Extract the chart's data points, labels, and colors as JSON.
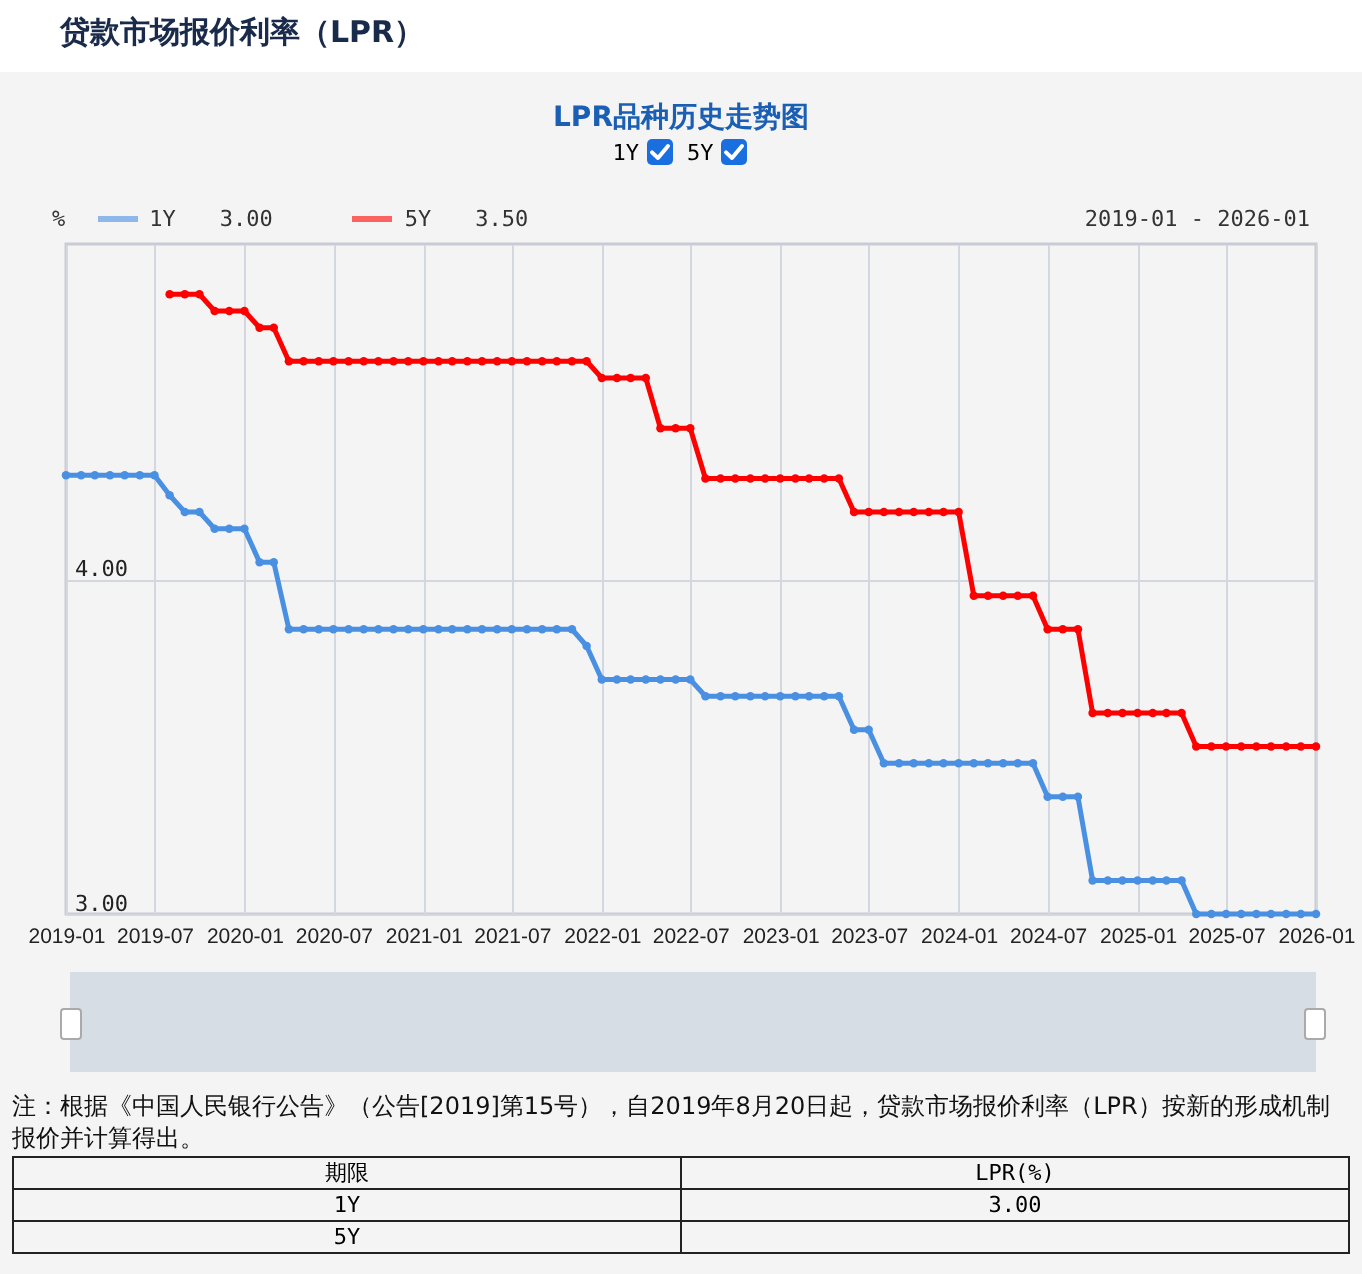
{
  "chart_data": {
    "type": "line",
    "title": "贷款市场报价利率（LPR）",
    "subtitle": "LPR品种历史走势图",
    "ylabel": "%",
    "xlim": [
      "2019-01",
      "2026-01"
    ],
    "xticks": [
      {
        "value": "2019-01",
        "label": "2019-01"
      },
      {
        "value": "2019-07",
        "label": "2019-07"
      },
      {
        "value": "2020-01",
        "label": "2020-01"
      },
      {
        "value": "2020-07",
        "label": "2020-07"
      },
      {
        "value": "2021-01",
        "label": "2021-01"
      },
      {
        "value": "2021-07",
        "label": "2021-07"
      },
      {
        "value": "2022-01",
        "label": "2022-01"
      },
      {
        "value": "2022-07",
        "label": "2022-07"
      },
      {
        "value": "2023-01",
        "label": "2023-01"
      },
      {
        "value": "2023-07",
        "label": "2023-07"
      },
      {
        "value": "2024-01",
        "label": "2024-01"
      },
      {
        "value": "2024-07",
        "label": "2024-07"
      },
      {
        "value": "2025-01",
        "label": "2025-01"
      },
      {
        "value": "2025-07",
        "label": "2025-07"
      },
      {
        "value": "2026-01",
        "label": "2026-01"
      }
    ],
    "ylim": [
      3,
      5
    ],
    "yticks": [
      {
        "value": 3,
        "label": "3.00"
      },
      {
        "value": 4,
        "label": "4.00"
      }
    ],
    "grid": true,
    "legend": "top left",
    "marker": "circle",
    "series": [
      {
        "name": "1Y",
        "color": "#4a90e2",
        "x": [
          "2019-01",
          "2019-02",
          "2019-03",
          "2019-04",
          "2019-05",
          "2019-06",
          "2019-07",
          "2019-08",
          "2019-09",
          "2019-10",
          "2019-11",
          "2019-12",
          "2020-01",
          "2020-02",
          "2020-03",
          "2020-04",
          "2020-05",
          "2020-06",
          "2020-07",
          "2020-08",
          "2020-09",
          "2020-10",
          "2020-11",
          "2020-12",
          "2021-01",
          "2021-02",
          "2021-03",
          "2021-04",
          "2021-05",
          "2021-06",
          "2021-07",
          "2021-08",
          "2021-09",
          "2021-10",
          "2021-11",
          "2021-12",
          "2022-01",
          "2022-02",
          "2022-03",
          "2022-04",
          "2022-05",
          "2022-06",
          "2022-07",
          "2022-08",
          "2022-09",
          "2022-10",
          "2022-11",
          "2022-12",
          "2023-01",
          "2023-02",
          "2023-03",
          "2023-04",
          "2023-05",
          "2023-06",
          "2023-07",
          "2023-08",
          "2023-09",
          "2023-10",
          "2023-11",
          "2023-12",
          "2024-01",
          "2024-02",
          "2024-03",
          "2024-04",
          "2024-05",
          "2024-06",
          "2024-07",
          "2024-08",
          "2024-09",
          "2024-10",
          "2024-11",
          "2024-12",
          "2025-01",
          "2025-02",
          "2025-03",
          "2025-04",
          "2025-05",
          "2025-06",
          "2025-07",
          "2025-08",
          "2025-09",
          "2025-10",
          "2025-11",
          "2025-12",
          "2026-01"
        ],
        "values": [
          4.31,
          4.31,
          4.31,
          4.31,
          4.31,
          4.31,
          4.31,
          4.25,
          4.2,
          4.2,
          4.15,
          4.15,
          4.15,
          4.05,
          4.05,
          3.85,
          3.85,
          3.85,
          3.85,
          3.85,
          3.85,
          3.85,
          3.85,
          3.85,
          3.85,
          3.85,
          3.85,
          3.85,
          3.85,
          3.85,
          3.85,
          3.85,
          3.85,
          3.85,
          3.85,
          3.8,
          3.7,
          3.7,
          3.7,
          3.7,
          3.7,
          3.7,
          3.7,
          3.65,
          3.65,
          3.65,
          3.65,
          3.65,
          3.65,
          3.65,
          3.65,
          3.65,
          3.65,
          3.55,
          3.55,
          3.45,
          3.45,
          3.45,
          3.45,
          3.45,
          3.45,
          3.45,
          3.45,
          3.45,
          3.45,
          3.45,
          3.35,
          3.35,
          3.35,
          3.1,
          3.1,
          3.1,
          3.1,
          3.1,
          3.1,
          3.1,
          3,
          3,
          3,
          3,
          3,
          3,
          3,
          3,
          3
        ]
      },
      {
        "name": "5Y",
        "color": "#ff0000",
        "x": [
          "2019-08",
          "2019-09",
          "2019-10",
          "2019-11",
          "2019-12",
          "2020-01",
          "2020-02",
          "2020-03",
          "2020-04",
          "2020-05",
          "2020-06",
          "2020-07",
          "2020-08",
          "2020-09",
          "2020-10",
          "2020-11",
          "2020-12",
          "2021-01",
          "2021-02",
          "2021-03",
          "2021-04",
          "2021-05",
          "2021-06",
          "2021-07",
          "2021-08",
          "2021-09",
          "2021-10",
          "2021-11",
          "2021-12",
          "2022-01",
          "2022-02",
          "2022-03",
          "2022-04",
          "2022-05",
          "2022-06",
          "2022-07",
          "2022-08",
          "2022-09",
          "2022-10",
          "2022-11",
          "2022-12",
          "2023-01",
          "2023-02",
          "2023-03",
          "2023-04",
          "2023-05",
          "2023-06",
          "2023-07",
          "2023-08",
          "2023-09",
          "2023-10",
          "2023-11",
          "2023-12",
          "2024-01",
          "2024-02",
          "2024-03",
          "2024-04",
          "2024-05",
          "2024-06",
          "2024-07",
          "2024-08",
          "2024-09",
          "2024-10",
          "2024-11",
          "2024-12",
          "2025-01",
          "2025-02",
          "2025-03",
          "2025-04",
          "2025-05",
          "2025-06",
          "2025-07",
          "2025-08",
          "2025-09",
          "2025-10",
          "2025-11",
          "2025-12",
          "2026-01"
        ],
        "values": [
          4.85,
          4.85,
          4.85,
          4.8,
          4.8,
          4.8,
          4.75,
          4.75,
          4.65,
          4.65,
          4.65,
          4.65,
          4.65,
          4.65,
          4.65,
          4.65,
          4.65,
          4.65,
          4.65,
          4.65,
          4.65,
          4.65,
          4.65,
          4.65,
          4.65,
          4.65,
          4.65,
          4.65,
          4.65,
          4.6,
          4.6,
          4.6,
          4.6,
          4.45,
          4.45,
          4.45,
          4.3,
          4.3,
          4.3,
          4.3,
          4.3,
          4.3,
          4.3,
          4.3,
          4.3,
          4.3,
          4.2,
          4.2,
          4.2,
          4.2,
          4.2,
          4.2,
          4.2,
          4.2,
          3.95,
          3.95,
          3.95,
          3.95,
          3.95,
          3.85,
          3.85,
          3.85,
          3.6,
          3.6,
          3.6,
          3.6,
          3.6,
          3.6,
          3.6,
          3.5,
          3.5,
          3.5,
          3.5,
          3.5,
          3.5,
          3.5,
          3.5,
          3.5
        ]
      }
    ],
    "annotations": [
      "2019-01 - 2026-01",
      "3.00",
      "3.50",
      "注：根据《中国人民银行公告》（公告[2019]第15号），自2019年8月20日起，贷款市场报价利率（LPR）按新的形成机制报价并计算得出。",
      "期限",
      "LPR(%)",
      "3.00"
    ]
  }
}
